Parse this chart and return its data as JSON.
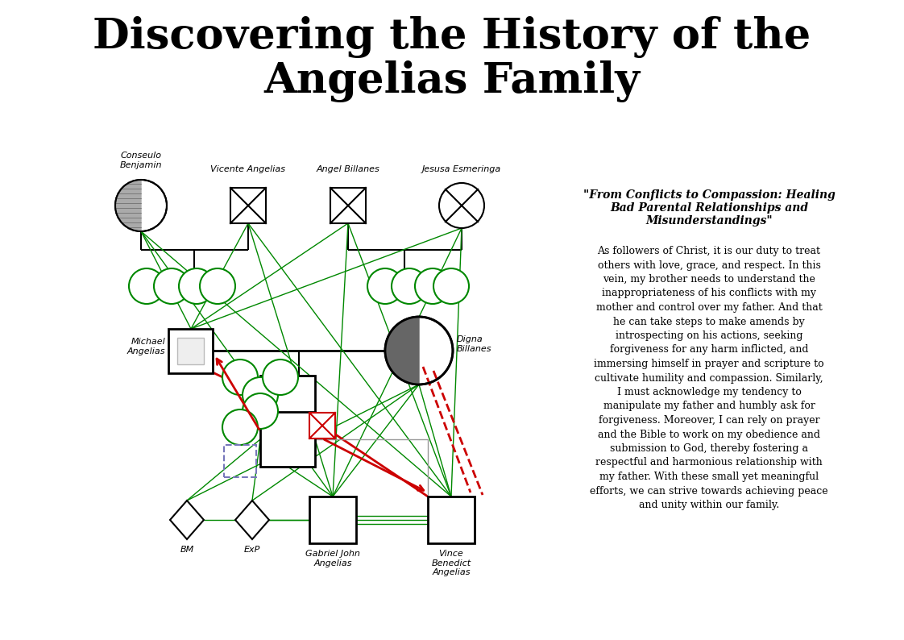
{
  "title_line1": "Discovering the History of the",
  "title_line2": "Angelias Family",
  "background_color": "#ffffff",
  "text_color": "#000000",
  "green": "#008800",
  "red": "#cc0000",
  "blue_dashed": "#7777bb",
  "gray": "#999999",
  "quote_title": "\"From Conflicts to Compassion: Healing\nBad Parental Relationships and\nMisunderstandings\"",
  "body_text": "As followers of Christ, it is our duty to treat\nothers with love, grace, and respect. In this\nvein, my brother needs to understand the\ninappropriateness of his conflicts with my\nmother and control over my father. And that\nhe can take steps to make amends by\nintrospecting on his actions, seeking\nforgiveness for any harm inflicted, and\nimmersing himself in prayer and scripture to\ncultivate humility and compassion. Similarly,\nI must acknowledge my tendency to\nmanipulate my father and humbly ask for\nforgiveness. Moreover, I can rely on prayer\nand the Bible to work on my obedience and\nsubmission to God, thereby fostering a\nrespectful and harmonious relationship with\nmy father. With these small yet meaningful\nefforts, we can strive towards achieving peace\nand unity within our family."
}
